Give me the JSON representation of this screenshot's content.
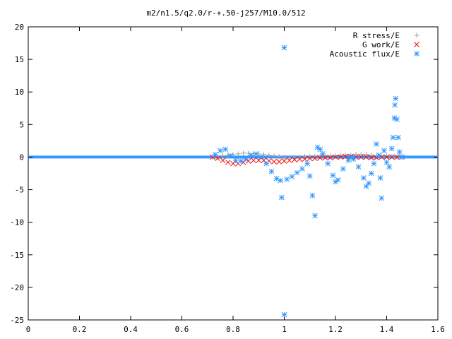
{
  "chart_data": {
    "type": "scatter",
    "title": "m2/n1.5/q2.0/r-+.50-j257/M10.0/512",
    "xlabel": "",
    "ylabel": "",
    "xlim": [
      0,
      1.6
    ],
    "ylim": [
      -25,
      20
    ],
    "xticks": [
      "0",
      "0.2",
      "0.4",
      "0.6",
      "0.8",
      "1",
      "1.2",
      "1.4",
      "1.6"
    ],
    "yticks": [
      "20",
      "15",
      "10",
      "5",
      "0",
      "-5",
      "-10",
      "-15",
      "-20",
      "-25"
    ],
    "legend_position": "top-right",
    "grid": false,
    "series": [
      {
        "name": "R stress/E",
        "marker": "+",
        "color": "#a0a0a0",
        "points": [
          [
            0.72,
            0.0
          ],
          [
            0.74,
            0.1
          ],
          [
            0.76,
            0.2
          ],
          [
            0.78,
            0.3
          ],
          [
            0.8,
            0.4
          ],
          [
            0.82,
            0.5
          ],
          [
            0.84,
            0.6
          ],
          [
            0.86,
            0.6
          ],
          [
            0.88,
            0.5
          ],
          [
            0.9,
            0.5
          ],
          [
            0.92,
            0.4
          ],
          [
            0.94,
            0.3
          ],
          [
            0.96,
            0.2
          ],
          [
            0.98,
            0.1
          ],
          [
            1.0,
            0.0
          ],
          [
            1.02,
            -0.1
          ],
          [
            1.04,
            -0.1
          ],
          [
            1.06,
            0.0
          ],
          [
            1.08,
            0.1
          ],
          [
            1.1,
            0.1
          ],
          [
            1.12,
            0.1
          ],
          [
            1.14,
            0.1
          ],
          [
            1.16,
            0.2
          ],
          [
            1.18,
            0.2
          ],
          [
            1.2,
            0.2
          ],
          [
            1.22,
            0.3
          ],
          [
            1.24,
            0.3
          ],
          [
            1.26,
            0.3
          ],
          [
            1.28,
            0.4
          ],
          [
            1.3,
            0.4
          ],
          [
            1.32,
            0.4
          ],
          [
            1.34,
            0.3
          ],
          [
            1.36,
            0.2
          ],
          [
            1.38,
            0.1
          ],
          [
            1.4,
            0.2
          ],
          [
            1.42,
            0.1
          ],
          [
            1.44,
            0.0
          ],
          [
            1.46,
            0.0
          ]
        ]
      },
      {
        "name": "G work/E",
        "marker": "x",
        "color": "#ff0000",
        "points": [
          [
            0.72,
            0.0
          ],
          [
            0.74,
            -0.2
          ],
          [
            0.76,
            -0.5
          ],
          [
            0.78,
            -0.8
          ],
          [
            0.8,
            -1.0
          ],
          [
            0.82,
            -1.0
          ],
          [
            0.84,
            -0.8
          ],
          [
            0.86,
            -0.6
          ],
          [
            0.88,
            -0.5
          ],
          [
            0.9,
            -0.5
          ],
          [
            0.92,
            -0.5
          ],
          [
            0.94,
            -0.6
          ],
          [
            0.96,
            -0.7
          ],
          [
            0.98,
            -0.7
          ],
          [
            1.0,
            -0.6
          ],
          [
            1.02,
            -0.5
          ],
          [
            1.04,
            -0.4
          ],
          [
            1.06,
            -0.3
          ],
          [
            1.08,
            -0.3
          ],
          [
            1.1,
            -0.2
          ],
          [
            1.12,
            -0.2
          ],
          [
            1.14,
            -0.1
          ],
          [
            1.16,
            -0.1
          ],
          [
            1.18,
            -0.1
          ],
          [
            1.2,
            0.0
          ],
          [
            1.22,
            0.0
          ],
          [
            1.24,
            0.1
          ],
          [
            1.26,
            0.1
          ],
          [
            1.28,
            0.0
          ],
          [
            1.3,
            0.0
          ],
          [
            1.32,
            0.0
          ],
          [
            1.34,
            -0.1
          ],
          [
            1.36,
            -0.1
          ],
          [
            1.38,
            0.0
          ],
          [
            1.4,
            0.0
          ],
          [
            1.42,
            0.0
          ],
          [
            1.44,
            0.0
          ],
          [
            1.46,
            0.0
          ]
        ]
      },
      {
        "name": "Acoustic flux/E",
        "marker": "*",
        "color": "#3399ff",
        "points": [
          [
            0.73,
            0.4
          ],
          [
            0.75,
            1.0
          ],
          [
            0.77,
            1.2
          ],
          [
            0.79,
            0.2
          ],
          [
            0.81,
            -0.5
          ],
          [
            0.83,
            -0.6
          ],
          [
            0.85,
            -0.3
          ],
          [
            0.87,
            0.3
          ],
          [
            0.89,
            0.5
          ],
          [
            0.91,
            0.0
          ],
          [
            0.93,
            -1.0
          ],
          [
            0.95,
            -2.2
          ],
          [
            0.97,
            -3.3
          ],
          [
            0.985,
            -3.6
          ],
          [
            0.99,
            -6.2
          ],
          [
            1.0,
            16.8
          ],
          [
            1.0,
            -24.2
          ],
          [
            1.01,
            -3.4
          ],
          [
            1.03,
            -3.0
          ],
          [
            1.05,
            -2.4
          ],
          [
            1.07,
            -1.8
          ],
          [
            1.09,
            -1.0
          ],
          [
            1.1,
            -2.9
          ],
          [
            1.11,
            -5.9
          ],
          [
            1.12,
            -9.0
          ],
          [
            1.13,
            1.5
          ],
          [
            1.14,
            1.2
          ],
          [
            1.15,
            0.5
          ],
          [
            1.17,
            -1.0
          ],
          [
            1.19,
            -2.8
          ],
          [
            1.2,
            -3.8
          ],
          [
            1.21,
            -3.5
          ],
          [
            1.23,
            -1.8
          ],
          [
            1.25,
            -0.5
          ],
          [
            1.26,
            0.0
          ],
          [
            1.27,
            -0.3
          ],
          [
            1.29,
            -1.5
          ],
          [
            1.31,
            -3.2
          ],
          [
            1.32,
            -4.5
          ],
          [
            1.33,
            -4.0
          ],
          [
            1.34,
            -2.5
          ],
          [
            1.35,
            -1.0
          ],
          [
            1.36,
            2.0
          ],
          [
            1.37,
            0.3
          ],
          [
            1.375,
            -3.2
          ],
          [
            1.38,
            -6.3
          ],
          [
            1.39,
            1.0
          ],
          [
            1.4,
            -0.8
          ],
          [
            1.41,
            -1.5
          ],
          [
            1.42,
            1.3
          ],
          [
            1.425,
            3.0
          ],
          [
            1.43,
            6.0
          ],
          [
            1.432,
            8.0
          ],
          [
            1.435,
            9.0
          ],
          [
            1.44,
            5.8
          ],
          [
            1.445,
            3.0
          ],
          [
            1.45,
            0.8
          ],
          [
            1.46,
            0.0
          ]
        ]
      }
    ]
  }
}
